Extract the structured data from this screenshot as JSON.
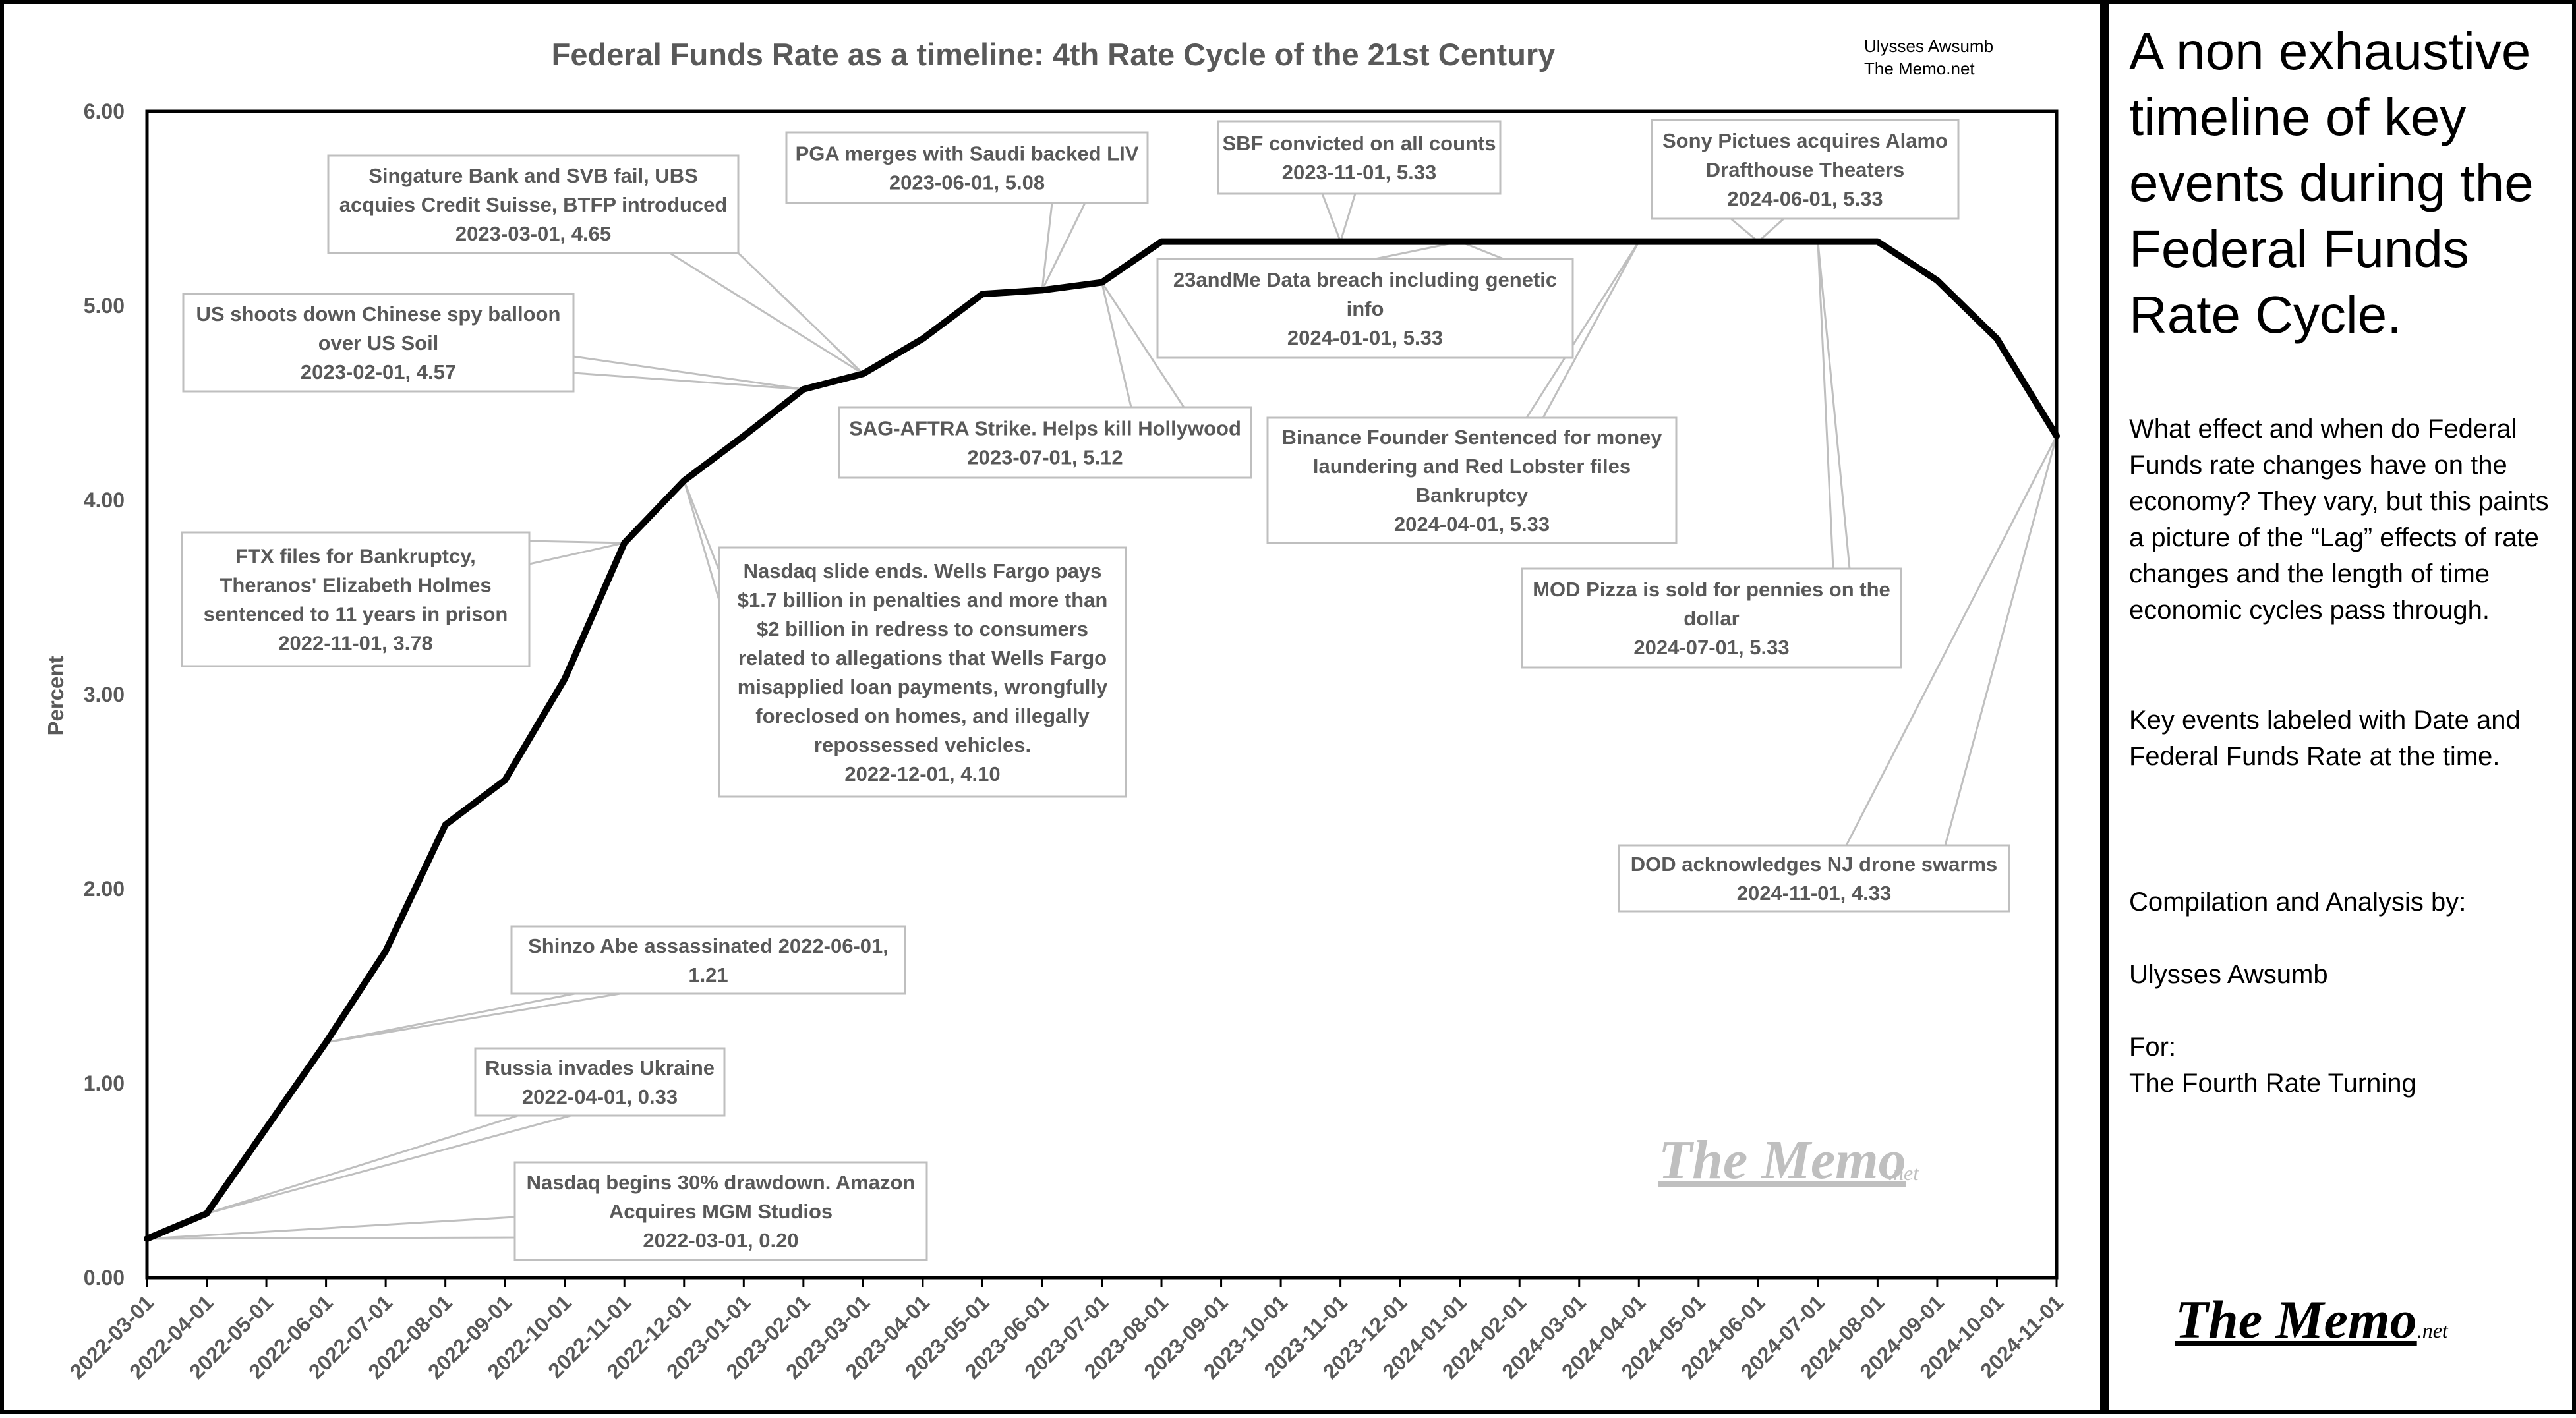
{
  "chart_data": {
    "type": "line",
    "title": "Federal Funds Rate as a timeline: 4th Rate Cycle of the 21st Century",
    "credit_line1": "Ulysses Awsumb",
    "credit_line2": "The Memo.net",
    "watermark": "The Memo",
    "watermark_suffix": ".net",
    "ylabel": "Percent",
    "xlabel": "",
    "ylim": [
      0,
      6
    ],
    "y_ticks": [
      "0.00",
      "1.00",
      "2.00",
      "3.00",
      "4.00",
      "5.00",
      "6.00"
    ],
    "grid": false,
    "x": [
      "2022-03-01",
      "2022-04-01",
      "2022-05-01",
      "2022-06-01",
      "2022-07-01",
      "2022-08-01",
      "2022-09-01",
      "2022-10-01",
      "2022-11-01",
      "2022-12-01",
      "2023-01-01",
      "2023-02-01",
      "2023-03-01",
      "2023-04-01",
      "2023-05-01",
      "2023-06-01",
      "2023-07-01",
      "2023-08-01",
      "2023-09-01",
      "2023-10-01",
      "2023-11-01",
      "2023-12-01",
      "2024-01-01",
      "2024-02-01",
      "2024-03-01",
      "2024-04-01",
      "2024-05-01",
      "2024-06-01",
      "2024-07-01",
      "2024-08-01",
      "2024-09-01",
      "2024-10-01",
      "2024-11-01"
    ],
    "series": [
      {
        "name": "Federal Funds Rate",
        "color": "#000000",
        "values": [
          0.2,
          0.33,
          0.77,
          1.21,
          1.68,
          2.33,
          2.56,
          3.08,
          3.78,
          4.1,
          4.33,
          4.57,
          4.65,
          4.83,
          5.06,
          5.08,
          5.12,
          5.33,
          5.33,
          5.33,
          5.33,
          5.33,
          5.33,
          5.33,
          5.33,
          5.33,
          5.33,
          5.33,
          5.33,
          5.33,
          5.13,
          4.83,
          4.33
        ]
      }
    ],
    "annotations": [
      {
        "lines": [
          "Nasdaq begins 30% drawdown. Amazon",
          "Acquires MGM Studios",
          "2022-03-01, 0.20"
        ],
        "points": [
          0
        ]
      },
      {
        "lines": [
          "Russia invades Ukraine",
          "2022-04-01, 0.33"
        ],
        "points": [
          1
        ]
      },
      {
        "lines": [
          "Shinzo Abe assassinated 2022-06-01,",
          "1.21"
        ],
        "points": [
          3
        ]
      },
      {
        "lines": [
          "FTX files for Bankruptcy,",
          "Theranos' Elizabeth Holmes",
          "sentenced to 11 years in prison",
          "2022-11-01, 3.78"
        ],
        "points": [
          8
        ]
      },
      {
        "lines": [
          "Nasdaq slide ends. Wells Fargo pays",
          "$1.7 billion in  penalties and more than",
          "$2 billion in redress to consumers",
          "related to allegations that Wells Fargo",
          "misapplied loan payments, wrongfully",
          "foreclosed on homes, and illegally",
          "repossessed vehicles.",
          "2022-12-01, 4.10"
        ],
        "points": [
          9
        ]
      },
      {
        "lines": [
          "US shoots down Chinese spy balloon",
          "over US Soil",
          "2023-02-01, 4.57"
        ],
        "points": [
          11
        ]
      },
      {
        "lines": [
          "Singature Bank and SVB fail, UBS",
          "acquies Credit Suisse, BTFP introduced",
          "2023-03-01, 4.65"
        ],
        "points": [
          12
        ]
      },
      {
        "lines": [
          "PGA merges with Saudi backed LIV",
          "2023-06-01, 5.08"
        ],
        "points": [
          15
        ]
      },
      {
        "lines": [
          "SAG-AFTRA Strike. Helps kill Hollywood",
          "2023-07-01, 5.12"
        ],
        "points": [
          16
        ]
      },
      {
        "lines": [
          "SBF convicted on all counts",
          "2023-11-01, 5.33"
        ],
        "points": [
          20
        ]
      },
      {
        "lines": [
          "23andMe Data breach including genetic",
          "info",
          "2024-01-01, 5.33"
        ],
        "points": [
          22
        ]
      },
      {
        "lines": [
          "Binance Founder Sentenced for money",
          "laundering and Red Lobster files",
          "Bankruptcy",
          "2024-04-01, 5.33"
        ],
        "points": [
          25
        ]
      },
      {
        "lines": [
          "Sony Pictues acquires Alamo",
          "Drafthouse Theaters",
          "2024-06-01, 5.33"
        ],
        "points": [
          27
        ]
      },
      {
        "lines": [
          "MOD Pizza is sold for pennies on the",
          "dollar",
          "2024-07-01, 5.33"
        ],
        "points": [
          28
        ]
      },
      {
        "lines": [
          "DOD acknowledges NJ drone swarms",
          "2024-11-01, 4.33"
        ],
        "points": [
          32
        ]
      }
    ]
  },
  "panel": {
    "heading": "A non exhaustive timeline of key events during the Federal Funds Rate Cycle.",
    "paragraph1": "What effect and when do Federal Funds rate changes have on the economy? They vary, but this paints a picture of the “Lag” effects of rate changes and the length of time economic cycles pass through.",
    "paragraph2": "Key events labeled with Date and Federal Funds Rate at the time.",
    "compilation_label": "Compilation and Analysis by:",
    "author": "Ulysses Awsumb",
    "for_label": "For:",
    "for_value": "The Fourth Rate Turning",
    "logo": "The Memo",
    "logo_suffix": ".net"
  }
}
